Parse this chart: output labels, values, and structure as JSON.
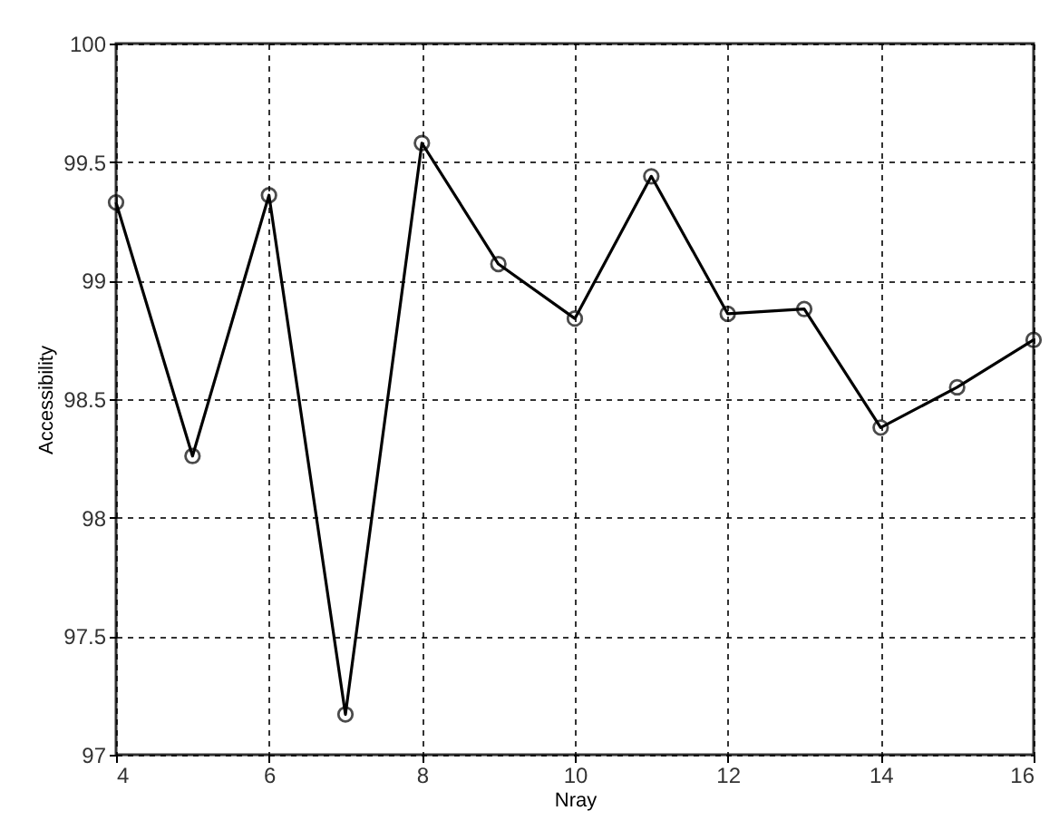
{
  "chart_data": {
    "type": "line",
    "xlabel": "Nray",
    "ylabel": "Accessibility",
    "x": [
      4,
      5,
      6,
      7,
      8,
      9,
      10,
      11,
      12,
      13,
      14,
      15,
      16
    ],
    "series": [
      {
        "color": "#000000",
        "values": [
          99.33,
          98.26,
          99.36,
          97.17,
          99.58,
          99.07,
          98.84,
          99.44,
          98.86,
          98.88,
          98.38,
          98.55,
          98.75
        ]
      }
    ],
    "xlim": [
      4,
      16
    ],
    "xticks": [
      4,
      6,
      8,
      10,
      12,
      14,
      16
    ],
    "ylim": [
      97,
      100
    ],
    "yticks": [
      97,
      97.5,
      98,
      98.5,
      99,
      99.5,
      100
    ],
    "grid": true,
    "marker": "circle",
    "line_style": "solid",
    "legend": false
  }
}
